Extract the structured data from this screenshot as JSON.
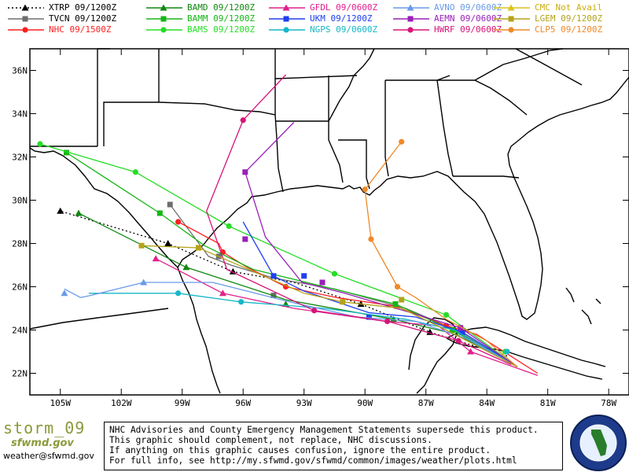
{
  "legend": [
    {
      "code": "XTRP",
      "time": "09/1200Z",
      "color": "#000000",
      "marker": "triangle",
      "dash": "2,3"
    },
    {
      "code": "TVCN",
      "time": "09/1200Z",
      "color": "#6e6e6e",
      "marker": "square",
      "dash": ""
    },
    {
      "code": "NHC",
      "time": "09/1500Z",
      "color": "#ff2020",
      "marker": "circle",
      "dash": ""
    },
    {
      "code": "BAMD",
      "time": "09/1200Z",
      "color": "#118811",
      "marker": "triangle",
      "dash": ""
    },
    {
      "code": "BAMM",
      "time": "09/1200Z",
      "color": "#16b616",
      "marker": "square",
      "dash": ""
    },
    {
      "code": "BAMS",
      "time": "09/1200Z",
      "color": "#25dd25",
      "marker": "circle",
      "dash": ""
    },
    {
      "code": "GFDL",
      "time": "09/0600Z",
      "color": "#e0208e",
      "marker": "triangle",
      "dash": ""
    },
    {
      "code": "UKM",
      "time": "09/1200Z",
      "color": "#1f3ff0",
      "marker": "square",
      "dash": ""
    },
    {
      "code": "NGPS",
      "time": "09/0600Z",
      "color": "#17b7c8",
      "marker": "circle",
      "dash": ""
    },
    {
      "code": "AVNO",
      "time": "09/0600Z",
      "color": "#6a9ae8",
      "marker": "triangle",
      "dash": ""
    },
    {
      "code": "AEMN",
      "time": "09/0600Z",
      "color": "#9a1fb8",
      "marker": "square",
      "dash": ""
    },
    {
      "code": "HWRF",
      "time": "09/0600Z",
      "color": "#d7137a",
      "marker": "circle",
      "dash": ""
    },
    {
      "code": "CMC",
      "time": "Not Avail",
      "color": "#dcc21f",
      "marker": "triangle",
      "dash": ""
    },
    {
      "code": "LGEM",
      "time": "09/1200Z",
      "color": "#b5a218",
      "marker": "square",
      "dash": ""
    },
    {
      "code": "CLP5",
      "time": "09/1200Z",
      "color": "#ee8a2a",
      "marker": "circle",
      "dash": ""
    }
  ],
  "axes": {
    "lat_ticks": [
      "36N",
      "34N",
      "32N",
      "30N",
      "28N",
      "26N",
      "24N",
      "22N"
    ],
    "lon_ticks": [
      "105W",
      "102W",
      "99W",
      "96W",
      "93W",
      "90W",
      "87W",
      "84W",
      "81W",
      "78W"
    ],
    "lat_range": [
      21,
      37
    ],
    "lon_range": [
      -106.5,
      -77
    ]
  },
  "tracks": [
    {
      "code": "XTRP",
      "points": [
        [
          -83.0,
          22.8
        ],
        [
          -86.8,
          23.9
        ],
        [
          -90.2,
          25.2
        ],
        [
          -93.5,
          26.2
        ],
        [
          -96.5,
          26.7
        ],
        [
          -99.7,
          28.0
        ],
        [
          -105.0,
          29.5
        ]
      ],
      "markers": [
        [
          -86.8,
          23.9
        ],
        [
          -90.2,
          25.2
        ],
        [
          -96.5,
          26.7
        ],
        [
          -99.7,
          28.0
        ],
        [
          -105.0,
          29.5
        ]
      ]
    },
    {
      "code": "TVCN",
      "points": [
        [
          -82.5,
          22.3
        ],
        [
          -85.5,
          24.0
        ],
        [
          -88.0,
          25.0
        ],
        [
          -91.5,
          25.9
        ],
        [
          -94.5,
          26.4
        ],
        [
          -96.6,
          27.0
        ],
        [
          -97.7,
          27.4
        ],
        [
          -99.6,
          29.8
        ]
      ],
      "markers": [
        [
          -94.5,
          25.6
        ],
        [
          -97.2,
          27.4
        ],
        [
          -99.6,
          29.8
        ]
      ]
    },
    {
      "code": "NHC",
      "points": [
        [
          -81.5,
          22.0
        ],
        [
          -84.5,
          23.8
        ],
        [
          -86.0,
          24.2
        ],
        [
          -88.5,
          25.1
        ],
        [
          -91.4,
          25.5
        ],
        [
          -93.9,
          26.0
        ],
        [
          -95.8,
          26.9
        ],
        [
          -97.0,
          27.6
        ],
        [
          -97.2,
          28.0
        ],
        [
          -99.2,
          29.0
        ]
      ],
      "markers": [
        [
          -86.0,
          24.2
        ],
        [
          -88.5,
          25.1
        ],
        [
          -93.9,
          26.0
        ],
        [
          -97.0,
          27.6
        ],
        [
          -99.2,
          29.0
        ]
      ]
    },
    {
      "code": "BAMD",
      "points": [
        [
          -82.5,
          22.3
        ],
        [
          -85.5,
          23.8
        ],
        [
          -88.6,
          24.5
        ],
        [
          -93.9,
          25.4
        ],
        [
          -98.8,
          26.9
        ],
        [
          -104.1,
          29.4
        ]
      ],
      "markers": [
        [
          -88.6,
          24.5
        ],
        [
          -93.9,
          25.2
        ],
        [
          -98.8,
          26.9
        ],
        [
          -104.1,
          29.4
        ]
      ]
    },
    {
      "code": "BAMM",
      "points": [
        [
          -82.5,
          22.3
        ],
        [
          -85.7,
          24.0
        ],
        [
          -88.5,
          25.2
        ],
        [
          -92.0,
          26.0
        ],
        [
          -95.5,
          26.8
        ],
        [
          -97.9,
          27.9
        ],
        [
          -100.1,
          29.4
        ],
        [
          -104.7,
          32.2
        ]
      ],
      "markers": [
        [
          -85.7,
          24.0
        ],
        [
          -88.5,
          25.2
        ],
        [
          -100.1,
          29.4
        ],
        [
          -104.7,
          32.2
        ]
      ]
    },
    {
      "code": "BAMS",
      "points": [
        [
          -82.5,
          22.3
        ],
        [
          -86.0,
          24.7
        ],
        [
          -91.5,
          26.6
        ],
        [
          -96.7,
          28.8
        ],
        [
          -101.3,
          31.3
        ],
        [
          -106.0,
          32.6
        ]
      ],
      "markers": [
        [
          -83.1,
          23.0
        ],
        [
          -86.0,
          24.7
        ],
        [
          -91.5,
          26.6
        ],
        [
          -96.7,
          28.8
        ],
        [
          -101.3,
          31.3
        ],
        [
          -106.0,
          32.6
        ]
      ]
    },
    {
      "code": "GFDL",
      "points": [
        [
          -81.5,
          21.9
        ],
        [
          -84.8,
          23.0
        ],
        [
          -86.4,
          24.2
        ],
        [
          -89.0,
          24.4
        ],
        [
          -93.5,
          25.0
        ],
        [
          -97.0,
          25.7
        ],
        [
          -100.3,
          27.3
        ]
      ],
      "markers": [
        [
          -84.8,
          23.0
        ],
        [
          -97.0,
          25.7
        ],
        [
          -100.3,
          27.3
        ]
      ]
    },
    {
      "code": "UKM",
      "points": [
        [
          -82.8,
          22.5
        ],
        [
          -85.2,
          23.9
        ],
        [
          -87.5,
          24.6
        ],
        [
          -89.8,
          24.8
        ],
        [
          -93.0,
          25.8
        ],
        [
          -94.5,
          26.5
        ],
        [
          -96.0,
          29.0
        ]
      ],
      "markers": [
        [
          -85.2,
          23.9
        ],
        [
          -89.8,
          24.6
        ],
        [
          -93.0,
          26.5
        ],
        [
          -94.5,
          26.5
        ]
      ]
    },
    {
      "code": "NGPS",
      "points": [
        [
          -82.5,
          22.3
        ],
        [
          -85.6,
          24.0
        ],
        [
          -88.0,
          24.5
        ],
        [
          -92.0,
          25.0
        ],
        [
          -96.1,
          25.3
        ],
        [
          -99.2,
          25.7
        ],
        [
          -103.6,
          25.7
        ]
      ],
      "markers": [
        [
          -83.0,
          23.0
        ],
        [
          -96.1,
          25.3
        ],
        [
          -99.2,
          25.7
        ]
      ]
    },
    {
      "code": "AVNO",
      "points": [
        [
          -82.5,
          22.3
        ],
        [
          -85.0,
          23.6
        ],
        [
          -87.5,
          24.4
        ],
        [
          -90.4,
          24.6
        ],
        [
          -93.7,
          25.3
        ],
        [
          -97.5,
          26.2
        ],
        [
          -100.9,
          26.2
        ],
        [
          -103.5,
          25.6
        ],
        [
          -104.0,
          25.5
        ],
        [
          -104.8,
          25.9
        ]
      ],
      "markers": [
        [
          -100.9,
          26.2
        ],
        [
          -104.8,
          25.7
        ]
      ]
    },
    {
      "code": "AEMN",
      "points": [
        [
          -82.5,
          22.3
        ],
        [
          -85.3,
          24.1
        ],
        [
          -88.1,
          24.9
        ],
        [
          -91.0,
          25.7
        ],
        [
          -93.1,
          26.2
        ],
        [
          -94.9,
          28.3
        ],
        [
          -95.9,
          31.3
        ],
        [
          -93.5,
          33.6
        ]
      ],
      "markers": [
        [
          -85.3,
          24.1
        ],
        [
          -92.1,
          26.2
        ],
        [
          -95.9,
          28.2
        ],
        [
          -95.9,
          31.3
        ]
      ]
    },
    {
      "code": "HWRF",
      "points": [
        [
          -82.8,
          22.4
        ],
        [
          -85.4,
          23.5
        ],
        [
          -88.9,
          24.4
        ],
        [
          -92.5,
          24.9
        ],
        [
          -96.8,
          26.8
        ],
        [
          -97.8,
          29.5
        ],
        [
          -96.0,
          33.7
        ],
        [
          -93.9,
          35.8
        ]
      ],
      "markers": [
        [
          -85.4,
          23.5
        ],
        [
          -88.9,
          24.4
        ],
        [
          -92.5,
          24.9
        ],
        [
          -96.0,
          33.7
        ]
      ]
    },
    {
      "code": "LGEM",
      "points": [
        [
          -82.5,
          22.3
        ],
        [
          -86.0,
          24.0
        ],
        [
          -88.2,
          25.0
        ],
        [
          -91.1,
          25.3
        ],
        [
          -93.0,
          25.7
        ],
        [
          -98.2,
          27.8
        ],
        [
          -101.0,
          27.9
        ]
      ],
      "markers": [
        [
          -88.2,
          25.4
        ],
        [
          -91.1,
          25.3
        ],
        [
          -98.2,
          27.8
        ],
        [
          -101.0,
          27.9
        ]
      ]
    },
    {
      "code": "CLP5",
      "points": [
        [
          -82.5,
          22.3
        ],
        [
          -84.0,
          23.5
        ],
        [
          -86.0,
          24.5
        ],
        [
          -87.5,
          25.5
        ],
        [
          -88.4,
          26.0
        ],
        [
          -89.7,
          28.2
        ],
        [
          -90.0,
          30.5
        ],
        [
          -88.2,
          32.7
        ]
      ],
      "markers": [
        [
          -88.4,
          26.0
        ],
        [
          -89.7,
          28.2
        ],
        [
          -90.0,
          30.5
        ],
        [
          -88.2,
          32.7
        ]
      ]
    }
  ],
  "footer": {
    "storm": "storm_09",
    "logo": "sfwmd.gov",
    "email": "weather@sfwmd.gov",
    "disclaimer": [
      "NHC Advisories and County Emergency Management Statements supersede this product.",
      "This graphic should complement, not replace, NHC discussions.",
      "If anything on this graphic causes confusion, ignore the entire product.",
      "For full info, see  http://my.sfwmd.gov/sfwmd/common/images/weather/plots.html"
    ]
  }
}
